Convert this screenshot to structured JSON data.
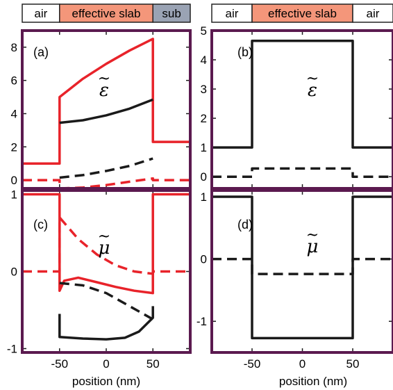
{
  "header_bars": [
    {
      "segments": [
        {
          "label": "air",
          "x0": -90,
          "x1": -50,
          "color": "#ffffff"
        },
        {
          "label": "effective slab",
          "x0": -50,
          "x1": 50,
          "color": "#f4967a"
        },
        {
          "label": "sub",
          "x0": 50,
          "x1": 90,
          "color": "#9aa3b4"
        }
      ]
    },
    {
      "segments": [
        {
          "label": "air",
          "x0": -90,
          "x1": -50,
          "color": "#ffffff"
        },
        {
          "label": "effective slab",
          "x0": -50,
          "x1": 50,
          "color": "#f4967a"
        },
        {
          "label": "air",
          "x0": 50,
          "x1": 90,
          "color": "#ffffff"
        }
      ]
    }
  ],
  "colors": {
    "frame": "#5b1a4f",
    "red": "#e8232a",
    "black": "#1a1a1a"
  },
  "x_axis": {
    "title": "position (nm)",
    "range": [
      -90,
      90
    ],
    "ticks": [
      -50,
      0,
      50
    ]
  },
  "chart_data": [
    {
      "type": "line",
      "panel": "(a)",
      "symbol": "ε",
      "xlim": [
        -90,
        90
      ],
      "ylim": [
        -0.5,
        9
      ],
      "yticks": [
        0,
        2,
        4,
        6,
        8
      ],
      "series": [
        {
          "color": "red",
          "style": "solid",
          "x": [
            -90,
            -50,
            -50,
            -25,
            0,
            25,
            50,
            50,
            90
          ],
          "y": [
            1,
            1,
            5,
            6.1,
            7.0,
            7.8,
            8.5,
            2.3,
            2.3
          ]
        },
        {
          "color": "black",
          "style": "solid",
          "x": [
            -50,
            -25,
            0,
            25,
            50
          ],
          "y": [
            3.45,
            3.6,
            3.9,
            4.3,
            4.85
          ]
        },
        {
          "color": "black",
          "style": "dashed",
          "x": [
            -50,
            -25,
            0,
            25,
            50
          ],
          "y": [
            0.15,
            0.3,
            0.55,
            0.85,
            1.3
          ]
        },
        {
          "color": "red",
          "style": "dashed",
          "x": [
            -90,
            -50,
            -50,
            -25,
            0,
            25,
            50,
            50,
            90
          ],
          "y": [
            0,
            0,
            -0.5,
            -0.45,
            -0.3,
            -0.1,
            0.1,
            0,
            0
          ]
        }
      ]
    },
    {
      "type": "line",
      "panel": "(b)",
      "symbol": "ε",
      "xlim": [
        -90,
        90
      ],
      "ylim": [
        -0.4,
        5
      ],
      "yticks": [
        0,
        1,
        2,
        3,
        4,
        5
      ],
      "series": [
        {
          "color": "black",
          "style": "solid",
          "x": [
            -90,
            -50,
            -50,
            50,
            50,
            90
          ],
          "y": [
            1,
            1,
            4.65,
            4.65,
            1,
            1
          ]
        },
        {
          "color": "black",
          "style": "dashed",
          "x": [
            -90,
            -50,
            -50,
            50,
            50,
            90
          ],
          "y": [
            0,
            0,
            0.28,
            0.28,
            0,
            0
          ]
        }
      ]
    },
    {
      "type": "line",
      "panel": "(c)",
      "symbol": "μ",
      "xlim": [
        -90,
        90
      ],
      "ylim": [
        -1.05,
        1.05
      ],
      "yticks": [
        -1,
        0,
        1
      ],
      "series": [
        {
          "color": "red",
          "style": "solid",
          "x": [
            -90,
            -50,
            -50,
            -45,
            -30,
            -10,
            10,
            30,
            50,
            50,
            90
          ],
          "y": [
            1,
            1,
            -0.25,
            -0.12,
            -0.08,
            -0.14,
            -0.2,
            -0.25,
            -0.28,
            1,
            1
          ]
        },
        {
          "color": "red",
          "style": "dashed",
          "x": [
            -90,
            -50,
            -50,
            -30,
            -10,
            10,
            30,
            50,
            50,
            90
          ],
          "y": [
            0,
            0,
            0.7,
            0.42,
            0.22,
            0.08,
            0.0,
            -0.03,
            0,
            0
          ]
        },
        {
          "color": "black",
          "style": "solid",
          "x": [
            -50,
            -50,
            -25,
            0,
            20,
            35,
            50,
            50
          ],
          "y": [
            -0.55,
            -0.85,
            -0.87,
            -0.88,
            -0.86,
            -0.78,
            -0.6,
            -0.45
          ]
        },
        {
          "color": "black",
          "style": "dashed",
          "x": [
            -50,
            -25,
            0,
            25,
            50
          ],
          "y": [
            -0.15,
            -0.18,
            -0.28,
            -0.45,
            -0.62
          ]
        }
      ]
    },
    {
      "type": "line",
      "panel": "(d)",
      "symbol": "μ",
      "xlim": [
        -90,
        90
      ],
      "ylim": [
        -1.5,
        1.1
      ],
      "yticks": [
        -1,
        0,
        1
      ],
      "series": [
        {
          "color": "black",
          "style": "solid",
          "x": [
            -90,
            -50,
            -50,
            50,
            50,
            90
          ],
          "y": [
            1,
            1,
            -1.27,
            -1.27,
            1,
            1
          ]
        },
        {
          "color": "black",
          "style": "dashed",
          "x": [
            -90,
            -50,
            -50,
            50,
            50,
            90
          ],
          "y": [
            0,
            0,
            -0.24,
            -0.24,
            0,
            0
          ]
        }
      ]
    }
  ]
}
